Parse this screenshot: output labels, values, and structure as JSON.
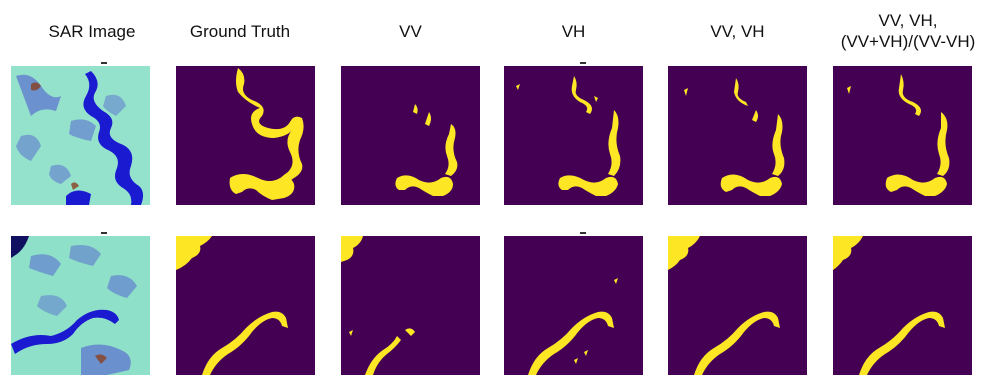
{
  "figure": {
    "columns": [
      {
        "id": "sar",
        "label_lines": [
          "SAR Image"
        ]
      },
      {
        "id": "gt",
        "label_lines": [
          "Ground Truth"
        ]
      },
      {
        "id": "vv",
        "label_lines": [
          "VV"
        ]
      },
      {
        "id": "vh",
        "label_lines": [
          "VH"
        ]
      },
      {
        "id": "vvvh",
        "label_lines": [
          "VV, VH"
        ]
      },
      {
        "id": "ratio",
        "label_lines": [
          "VV, VH,",
          "(VV+VH)/(VV-VH)"
        ]
      }
    ],
    "rows": 2,
    "colors": {
      "water_mask": "#fde725",
      "background_mask": "#440154",
      "sar_land": "#8fe0c8",
      "sar_water": "#1a1ad0",
      "sar_urban": "#5a6fd0"
    }
  }
}
